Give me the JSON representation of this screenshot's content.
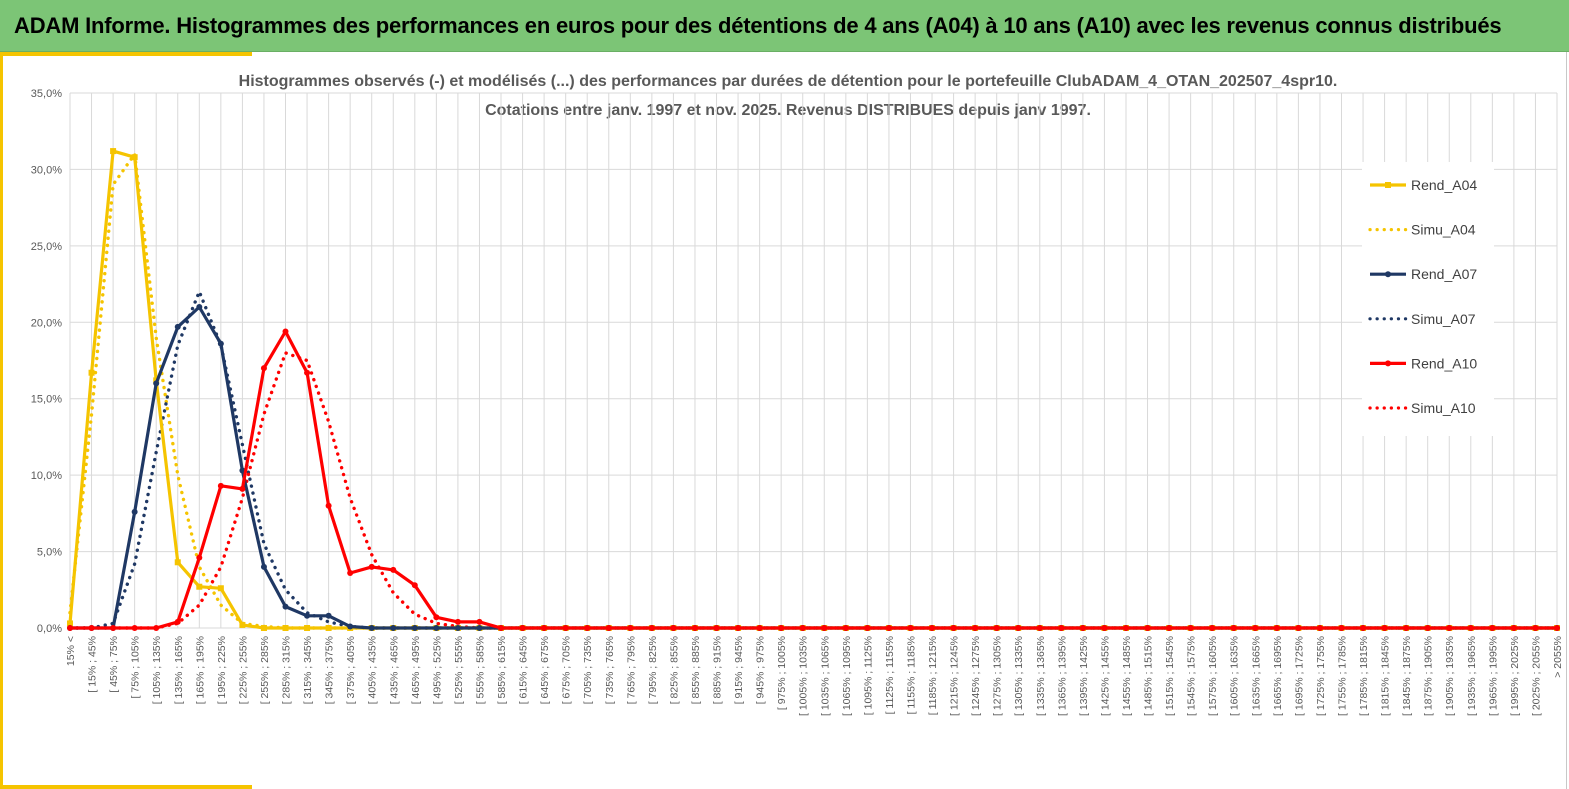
{
  "header": {
    "title": "ADAM Informe. Histogrammes des performances en euros pour des détentions de 4 ans (A04) à 10 ans (A10) avec les revenus connus distribués"
  },
  "colors": {
    "banner": "#7cc576",
    "accent": "#f5c400",
    "gridline": "#d9d9d9",
    "axis_text": "#595959"
  },
  "chart_data": {
    "type": "line",
    "title": "Histogrammes observés (-) et modélisés (...) des performances par durées de détention pour le portefeuille ClubADAM_4_OTAN_202507_4spr10.",
    "subtitle": "Cotations entre janv. 1997 et nov. 2025. Revenus DISTRIBUES depuis janv 1997.",
    "xlabel": "",
    "ylabel": "",
    "ylim": [
      0,
      35
    ],
    "yticks": [
      0,
      5,
      10,
      15,
      20,
      25,
      30,
      35
    ],
    "ytick_labels": [
      "0,0%",
      "5,0%",
      "10,0%",
      "15,0%",
      "20,0%",
      "25,0%",
      "30,0%",
      "35,0%"
    ],
    "grid": true,
    "legend": "right",
    "categories": [
      "15% <",
      "[ 15% ; 45%",
      "[ 45% ; 75%",
      "[ 75% ; 105%",
      "[ 105% ; 135%",
      "[ 135% ; 165%",
      "[ 165% ; 195%",
      "[ 195% ; 225%",
      "[ 225% ; 255%",
      "[ 255% ; 285%",
      "[ 285% ; 315%",
      "[ 315% ; 345%",
      "[ 345% ; 375%",
      "[ 375% ; 405%",
      "[ 405% ; 435%",
      "[ 435% ; 465%",
      "[ 465% ; 495%",
      "[ 495% ; 525%",
      "[ 525% ; 555%",
      "[ 555% ; 585%",
      "[ 585% ; 615%",
      "[ 615% ; 645%",
      "[ 645% ; 675%",
      "[ 675% ; 705%",
      "[ 705% ; 735%",
      "[ 735% ; 765%",
      "[ 765% ; 795%",
      "[ 795% ; 825%",
      "[ 825% ; 855%",
      "[ 855% ; 885%",
      "[ 885% ; 915%",
      "[ 915% ; 945%",
      "[ 945% ; 975%",
      "[ 975% ; 1005%",
      "[ 1005% ; 1035%",
      "[ 1035% ; 1065%",
      "[ 1065% ; 1095%",
      "[ 1095% ; 1125%",
      "[ 1125% ; 1155%",
      "[ 1155% ; 1185%",
      "[ 1185% ; 1215%",
      "[ 1215% ; 1245%",
      "[ 1245% ; 1275%",
      "[ 1275% ; 1305%",
      "[ 1305% ; 1335%",
      "[ 1335% ; 1365%",
      "[ 1365% ; 1395%",
      "[ 1395% ; 1425%",
      "[ 1425% ; 1455%",
      "[ 1455% ; 1485%",
      "[ 1485% ; 1515%",
      "[ 1515% ; 1545%",
      "[ 1545% ; 1575%",
      "[ 1575% ; 1605%",
      "[ 1605% ; 1635%",
      "[ 1635% ; 1665%",
      "[ 1665% ; 1695%",
      "[ 1695% ; 1725%",
      "[ 1725% ; 1755%",
      "[ 1755% ; 1785%",
      "[ 1785% ; 1815%",
      "[ 1815% ; 1845%",
      "[ 1845% ; 1875%",
      "[ 1875% ; 1905%",
      "[ 1905% ; 1935%",
      "[ 1935% ; 1965%",
      "[ 1965% ; 1995%",
      "[ 1995% ; 2025%",
      "[ 2025% ; 2055%",
      "> 2055%"
    ],
    "series": [
      {
        "name": "Rend_A04",
        "color": "#f5c400",
        "dash": false,
        "marker": "square",
        "values": [
          0.3,
          16.7,
          31.2,
          30.8,
          16.2,
          4.3,
          2.7,
          2.6,
          0.2,
          0.0,
          0.0,
          0.0,
          0.0,
          0.0,
          0.0,
          0.0,
          0.0,
          0.0,
          0.0,
          0.0,
          0.0,
          0.0,
          0.0,
          0.0,
          0.0,
          0.0,
          0.0,
          0.0,
          0.0,
          0.0,
          0.0,
          0.0,
          0.0,
          0.0,
          0.0,
          0.0,
          0.0,
          0.0,
          0.0,
          0.0,
          0.0,
          0.0,
          0.0,
          0.0,
          0.0,
          0.0,
          0.0,
          0.0,
          0.0,
          0.0,
          0.0,
          0.0,
          0.0,
          0.0,
          0.0,
          0.0,
          0.0,
          0.0,
          0.0,
          0.0,
          0.0,
          0.0,
          0.0,
          0.0,
          0.0,
          0.0,
          0.0,
          0.0,
          0.0,
          0.0
        ]
      },
      {
        "name": "Simu_A04",
        "color": "#f5c400",
        "dash": true,
        "marker": "none",
        "values": [
          1.0,
          14.0,
          29.0,
          31.0,
          19.0,
          10.0,
          4.0,
          1.5,
          0.3,
          0.1,
          0.0,
          0.0,
          0.0,
          0.0,
          0.0,
          0.0,
          0.0,
          0.0,
          0.0,
          0.0,
          0.0,
          0.0,
          0.0,
          0.0,
          0.0,
          0.0,
          0.0,
          0.0,
          0.0,
          0.0,
          0.0,
          0.0,
          0.0,
          0.0,
          0.0,
          0.0,
          0.0,
          0.0,
          0.0,
          0.0,
          0.0,
          0.0,
          0.0,
          0.0,
          0.0,
          0.0,
          0.0,
          0.0,
          0.0,
          0.0,
          0.0,
          0.0,
          0.0,
          0.0,
          0.0,
          0.0,
          0.0,
          0.0,
          0.0,
          0.0,
          0.0,
          0.0,
          0.0,
          0.0,
          0.0,
          0.0,
          0.0,
          0.0,
          0.0,
          0.0
        ]
      },
      {
        "name": "Rend_A07",
        "color": "#1f3864",
        "dash": false,
        "marker": "circle",
        "values": [
          0.0,
          0.0,
          0.0,
          7.6,
          16.0,
          19.7,
          21.0,
          18.6,
          10.3,
          4.0,
          1.4,
          0.8,
          0.8,
          0.1,
          0.0,
          0.0,
          0.0,
          0.0,
          0.0,
          0.0,
          0.0,
          0.0,
          0.0,
          0.0,
          0.0,
          0.0,
          0.0,
          0.0,
          0.0,
          0.0,
          0.0,
          0.0,
          0.0,
          0.0,
          0.0,
          0.0,
          0.0,
          0.0,
          0.0,
          0.0,
          0.0,
          0.0,
          0.0,
          0.0,
          0.0,
          0.0,
          0.0,
          0.0,
          0.0,
          0.0,
          0.0,
          0.0,
          0.0,
          0.0,
          0.0,
          0.0,
          0.0,
          0.0,
          0.0,
          0.0,
          0.0,
          0.0,
          0.0,
          0.0,
          0.0,
          0.0,
          0.0,
          0.0,
          0.0,
          0.0
        ]
      },
      {
        "name": "Simu_A07",
        "color": "#1f3864",
        "dash": true,
        "marker": "none",
        "values": [
          0.0,
          0.0,
          0.3,
          4.2,
          11.5,
          18.5,
          22.0,
          18.5,
          12.0,
          5.5,
          2.5,
          1.0,
          0.4,
          0.1,
          0.0,
          0.0,
          0.0,
          0.0,
          0.0,
          0.0,
          0.0,
          0.0,
          0.0,
          0.0,
          0.0,
          0.0,
          0.0,
          0.0,
          0.0,
          0.0,
          0.0,
          0.0,
          0.0,
          0.0,
          0.0,
          0.0,
          0.0,
          0.0,
          0.0,
          0.0,
          0.0,
          0.0,
          0.0,
          0.0,
          0.0,
          0.0,
          0.0,
          0.0,
          0.0,
          0.0,
          0.0,
          0.0,
          0.0,
          0.0,
          0.0,
          0.0,
          0.0,
          0.0,
          0.0,
          0.0,
          0.0,
          0.0,
          0.0,
          0.0,
          0.0,
          0.0,
          0.0,
          0.0,
          0.0,
          0.0
        ]
      },
      {
        "name": "Rend_A10",
        "color": "#ff0000",
        "dash": false,
        "marker": "circle",
        "values": [
          0.0,
          0.0,
          0.0,
          0.0,
          0.0,
          0.4,
          4.6,
          9.3,
          9.1,
          17.0,
          19.4,
          16.7,
          8.0,
          3.6,
          4.0,
          3.8,
          2.8,
          0.7,
          0.4,
          0.4,
          0.0,
          0.0,
          0.0,
          0.0,
          0.0,
          0.0,
          0.0,
          0.0,
          0.0,
          0.0,
          0.0,
          0.0,
          0.0,
          0.0,
          0.0,
          0.0,
          0.0,
          0.0,
          0.0,
          0.0,
          0.0,
          0.0,
          0.0,
          0.0,
          0.0,
          0.0,
          0.0,
          0.0,
          0.0,
          0.0,
          0.0,
          0.0,
          0.0,
          0.0,
          0.0,
          0.0,
          0.0,
          0.0,
          0.0,
          0.0,
          0.0,
          0.0,
          0.0,
          0.0,
          0.0,
          0.0,
          0.0,
          0.0,
          0.0,
          0.0
        ]
      },
      {
        "name": "Simu_A10",
        "color": "#ff0000",
        "dash": true,
        "marker": "none",
        "values": [
          0.0,
          0.0,
          0.0,
          0.0,
          0.0,
          0.3,
          1.5,
          4.0,
          8.5,
          14.0,
          18.0,
          17.5,
          13.5,
          8.5,
          4.8,
          2.3,
          0.9,
          0.3,
          0.1,
          0.0,
          0.0,
          0.0,
          0.0,
          0.0,
          0.0,
          0.0,
          0.0,
          0.0,
          0.0,
          0.0,
          0.0,
          0.0,
          0.0,
          0.0,
          0.0,
          0.0,
          0.0,
          0.0,
          0.0,
          0.0,
          0.0,
          0.0,
          0.0,
          0.0,
          0.0,
          0.0,
          0.0,
          0.0,
          0.0,
          0.0,
          0.0,
          0.0,
          0.0,
          0.0,
          0.0,
          0.0,
          0.0,
          0.0,
          0.0,
          0.0,
          0.0,
          0.0,
          0.0,
          0.0,
          0.0,
          0.0,
          0.0,
          0.0,
          0.0,
          0.0
        ]
      }
    ]
  }
}
